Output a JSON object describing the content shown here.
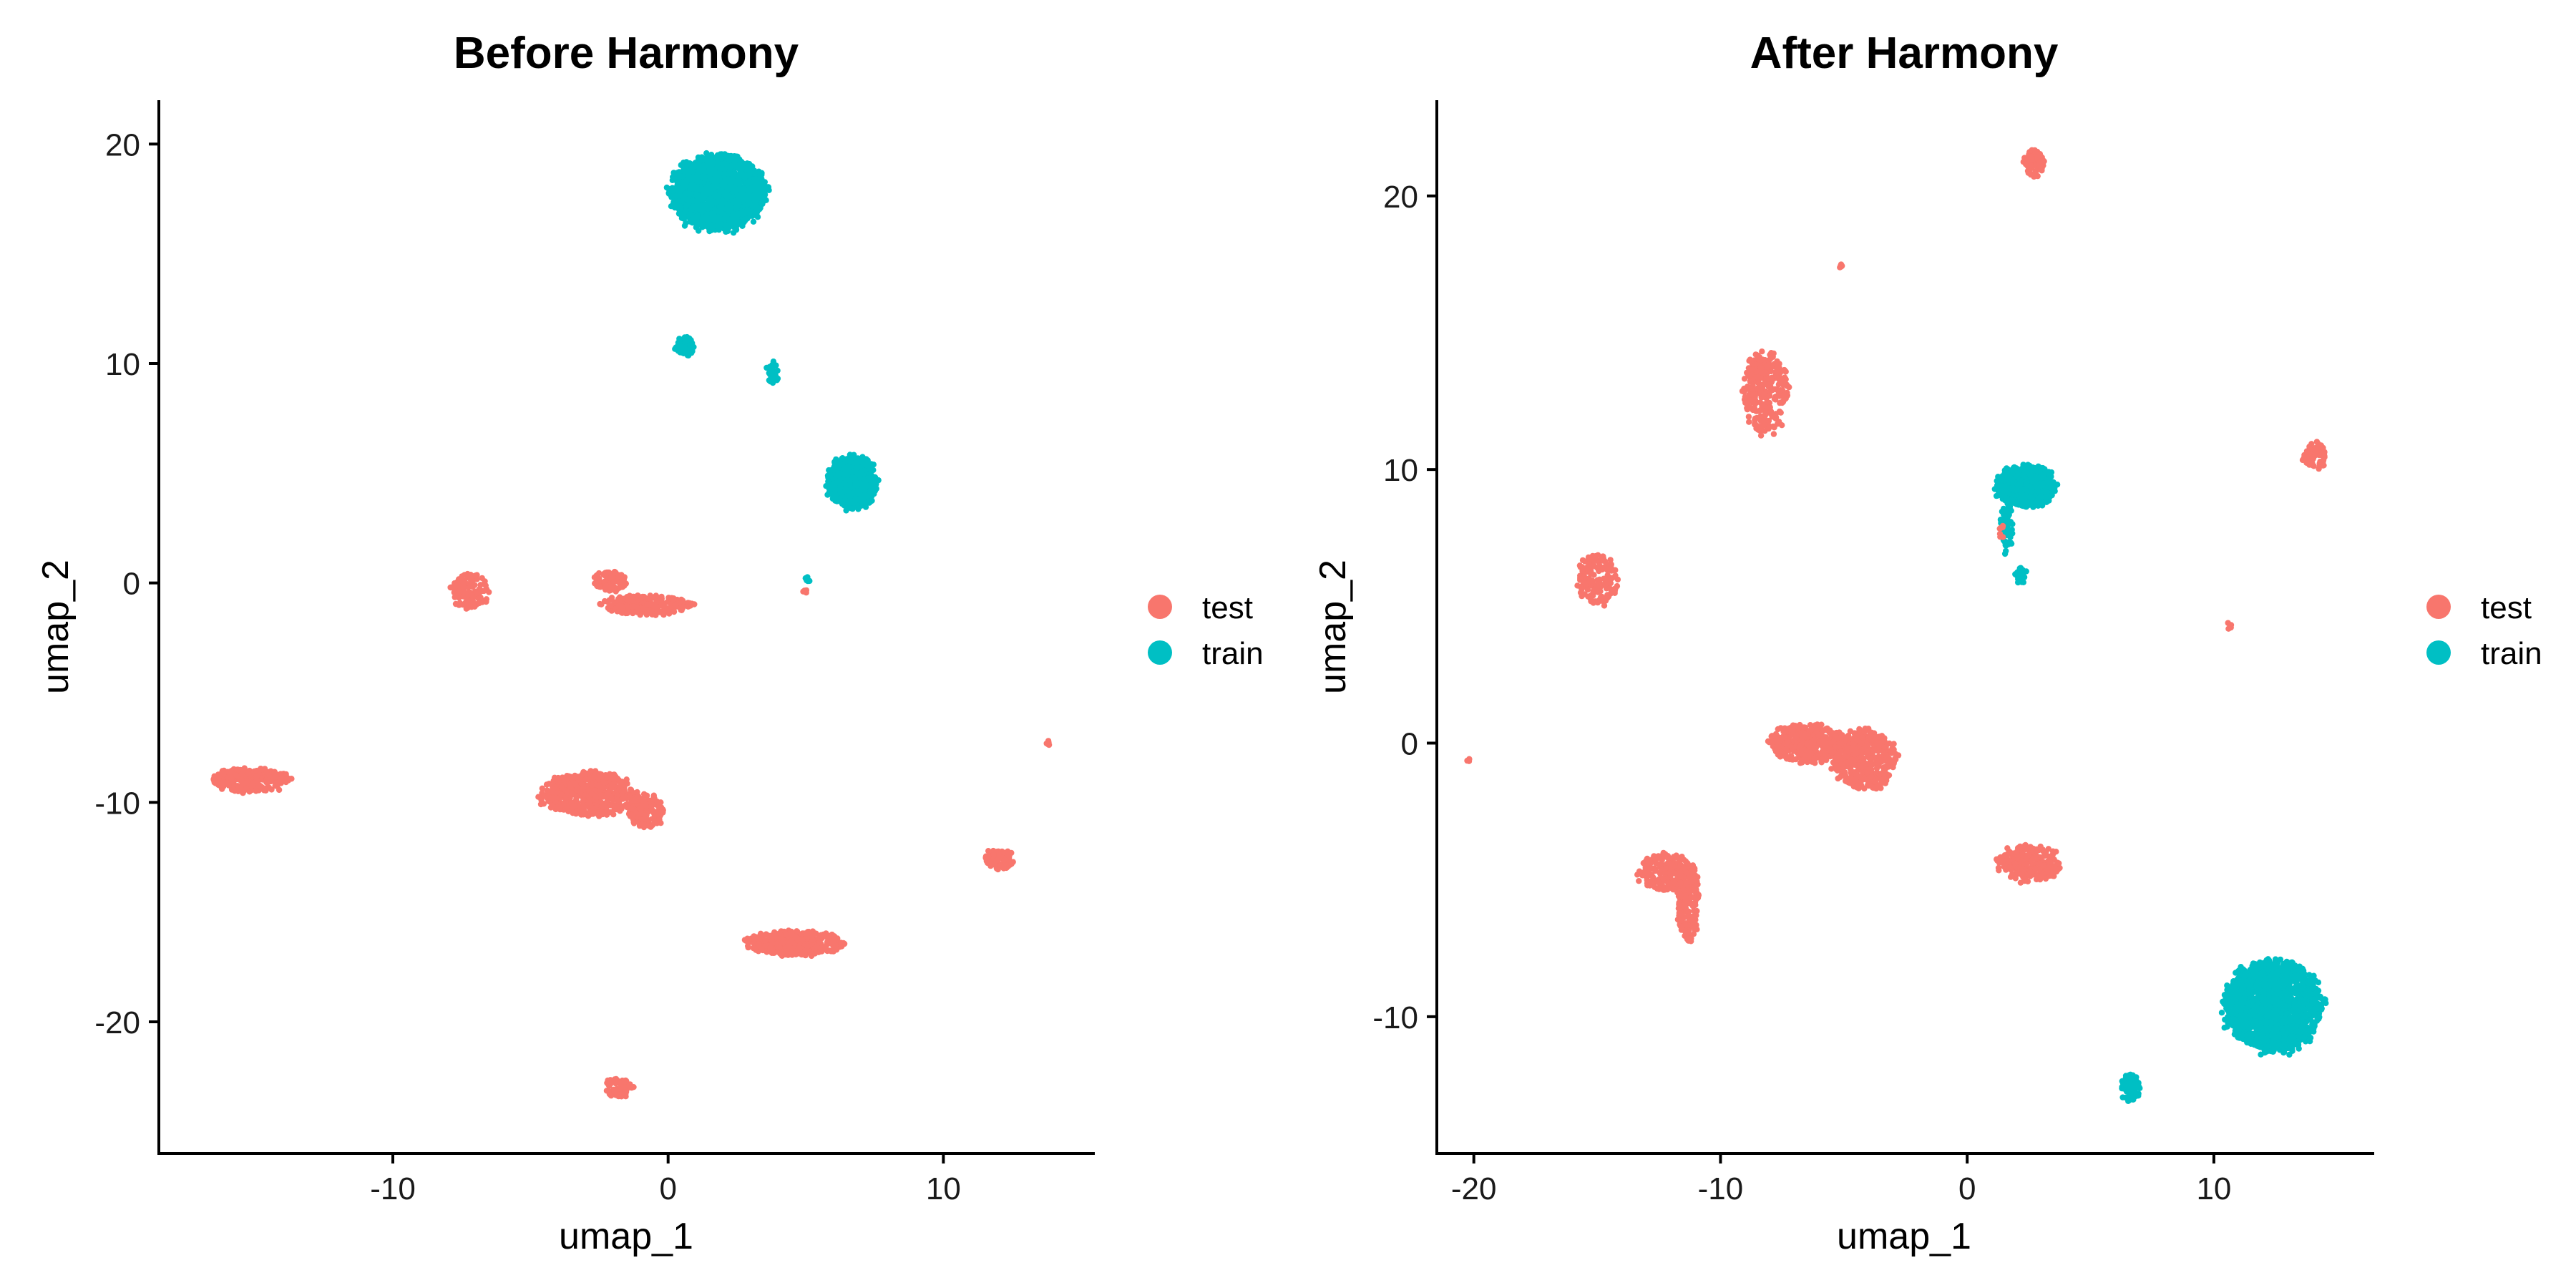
{
  "legend": {
    "entries": [
      {
        "label": "test",
        "color": "#F8766D"
      },
      {
        "label": "train",
        "color": "#00BFC4"
      }
    ]
  },
  "chart_data": [
    {
      "type": "scatter",
      "title": "Before Harmony",
      "xlabel": "umap_1",
      "ylabel": "umap_2",
      "xlim": [
        -18.5,
        15.5
      ],
      "ylim": [
        -26,
        22
      ],
      "xticks": [
        -10,
        0,
        10
      ],
      "yticks": [
        -20,
        -10,
        0,
        10,
        20
      ],
      "grid": false,
      "legend_position": "right",
      "clusters": [
        {
          "group": "train",
          "cx": 1.8,
          "cy": 17.8,
          "rx": 1.7,
          "ry": 1.7,
          "n": 1600
        },
        {
          "group": "train",
          "cx": 0.6,
          "cy": 10.8,
          "rx": 0.35,
          "ry": 0.45,
          "n": 60
        },
        {
          "group": "train",
          "cx": 3.8,
          "cy": 9.6,
          "rx": 0.25,
          "ry": 0.5,
          "n": 30
        },
        {
          "group": "train",
          "cx": 6.7,
          "cy": 4.6,
          "rx": 0.9,
          "ry": 1.2,
          "n": 700
        },
        {
          "group": "train",
          "cx": 5.1,
          "cy": 0.2,
          "rx": 0.12,
          "ry": 0.15,
          "n": 6
        },
        {
          "group": "test",
          "cx": 5.0,
          "cy": -0.4,
          "rx": 0.1,
          "ry": 0.15,
          "n": 5
        },
        {
          "group": "test",
          "cx": -7.2,
          "cy": -0.4,
          "rx": 0.7,
          "ry": 0.8,
          "n": 120
        },
        {
          "group": "test",
          "cx": -2.1,
          "cy": 0.1,
          "rx": 0.6,
          "ry": 0.45,
          "n": 100
        },
        {
          "group": "test",
          "cx": -0.8,
          "cy": -1.0,
          "rx": 1.6,
          "ry": 0.45,
          "n": 250
        },
        {
          "group": "test",
          "cx": -15.2,
          "cy": -9.0,
          "rx": 1.4,
          "ry": 0.55,
          "n": 300
        },
        {
          "group": "test",
          "cx": -2.9,
          "cy": -9.6,
          "rx": 1.7,
          "ry": 1.0,
          "n": 500
        },
        {
          "group": "test",
          "cx": -0.8,
          "cy": -10.4,
          "rx": 0.7,
          "ry": 0.75,
          "n": 150
        },
        {
          "group": "test",
          "cx": 12.0,
          "cy": -12.6,
          "rx": 0.55,
          "ry": 0.45,
          "n": 80
        },
        {
          "group": "test",
          "cx": 13.8,
          "cy": -7.3,
          "rx": 0.1,
          "ry": 0.12,
          "n": 5
        },
        {
          "group": "test",
          "cx": 4.6,
          "cy": -16.4,
          "rx": 1.8,
          "ry": 0.55,
          "n": 380
        },
        {
          "group": "test",
          "cx": -1.8,
          "cy": -23.0,
          "rx": 0.5,
          "ry": 0.45,
          "n": 60
        }
      ]
    },
    {
      "type": "scatter",
      "title": "After Harmony",
      "xlabel": "umap_1",
      "ylabel": "umap_2",
      "xlim": [
        -21.5,
        16.5
      ],
      "ylim": [
        -15,
        23.5
      ],
      "xticks": [
        -20,
        -10,
        0,
        10
      ],
      "yticks": [
        -10,
        0,
        10,
        20
      ],
      "grid": false,
      "legend_position": "right",
      "clusters": [
        {
          "group": "test",
          "cx": 2.7,
          "cy": 21.2,
          "rx": 0.4,
          "ry": 0.5,
          "n": 80
        },
        {
          "group": "test",
          "cx": -5.1,
          "cy": 17.4,
          "rx": 0.1,
          "ry": 0.12,
          "n": 5
        },
        {
          "group": "test",
          "cx": -8.2,
          "cy": 12.8,
          "rx": 0.9,
          "ry": 1.5,
          "n": 320
        },
        {
          "group": "test",
          "cx": 14.1,
          "cy": 10.5,
          "rx": 0.5,
          "ry": 0.5,
          "n": 70
        },
        {
          "group": "train",
          "cx": 2.4,
          "cy": 9.4,
          "rx": 1.2,
          "ry": 0.75,
          "n": 700
        },
        {
          "group": "train",
          "cx": 1.6,
          "cy": 8.0,
          "rx": 0.25,
          "ry": 1.0,
          "n": 60
        },
        {
          "group": "train",
          "cx": 2.2,
          "cy": 6.1,
          "rx": 0.25,
          "ry": 0.3,
          "n": 30
        },
        {
          "group": "test",
          "cx": 1.4,
          "cy": 7.7,
          "rx": 0.12,
          "ry": 0.25,
          "n": 8
        },
        {
          "group": "test",
          "cx": -15.0,
          "cy": 6.0,
          "rx": 0.85,
          "ry": 0.9,
          "n": 150
        },
        {
          "group": "test",
          "cx": 10.6,
          "cy": 4.3,
          "rx": 0.12,
          "ry": 0.12,
          "n": 5
        },
        {
          "group": "test",
          "cx": -20.2,
          "cy": -0.6,
          "rx": 0.08,
          "ry": 0.1,
          "n": 4
        },
        {
          "group": "test",
          "cx": -6.5,
          "cy": 0.0,
          "rx": 1.5,
          "ry": 0.7,
          "n": 350
        },
        {
          "group": "test",
          "cx": -4.2,
          "cy": -0.6,
          "rx": 1.3,
          "ry": 1.1,
          "n": 450
        },
        {
          "group": "test",
          "cx": -12.2,
          "cy": -4.7,
          "rx": 1.1,
          "ry": 0.7,
          "n": 200
        },
        {
          "group": "test",
          "cx": -11.3,
          "cy": -5.8,
          "rx": 0.45,
          "ry": 1.4,
          "n": 180
        },
        {
          "group": "test",
          "cx": 2.5,
          "cy": -4.4,
          "rx": 1.3,
          "ry": 0.65,
          "n": 250
        },
        {
          "group": "train",
          "cx": 12.4,
          "cy": -9.6,
          "rx": 1.95,
          "ry": 1.65,
          "n": 1600
        },
        {
          "group": "train",
          "cx": 6.6,
          "cy": -12.6,
          "rx": 0.4,
          "ry": 0.5,
          "n": 70
        }
      ]
    }
  ]
}
